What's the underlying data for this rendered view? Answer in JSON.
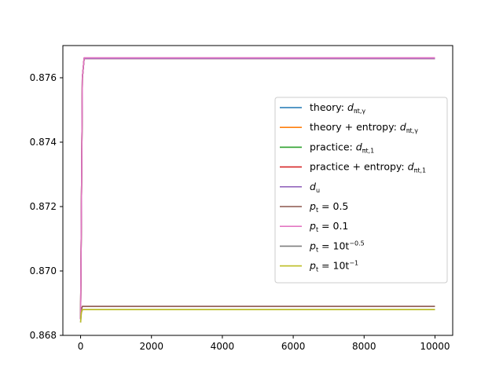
{
  "chart_data": {
    "type": "line",
    "title": "",
    "xlabel": "",
    "ylabel": "",
    "xlim": [
      -500,
      10500
    ],
    "ylim": [
      0.868,
      0.877
    ],
    "x_ticks": [
      0,
      2000,
      4000,
      6000,
      8000,
      10000
    ],
    "x_tick_labels": [
      "0",
      "2000",
      "4000",
      "6000",
      "8000",
      "10000"
    ],
    "y_ticks": [
      0.868,
      0.87,
      0.872,
      0.874,
      0.876
    ],
    "y_tick_labels": [
      "0.868",
      "0.870",
      "0.872",
      "0.874",
      "0.876"
    ],
    "grid": false,
    "legend_position": "center-right",
    "series": [
      {
        "name": "theory: d_{π_t,γ}",
        "legend": {
          "pre": "theory: ",
          "main": "d",
          "sub": "πt,γ"
        },
        "color": "#1f77b4",
        "x": [
          0,
          50,
          100,
          10000
        ],
        "y": [
          0.8685,
          0.876,
          0.87661,
          0.87661
        ]
      },
      {
        "name": "theory + entropy: d_{π_t,γ}",
        "legend": {
          "pre": "theory + entropy: ",
          "main": "d",
          "sub": "πt,γ"
        },
        "color": "#ff7f0e",
        "x": [
          0,
          50,
          100,
          10000
        ],
        "y": [
          0.8685,
          0.876,
          0.87661,
          0.87661
        ]
      },
      {
        "name": "practice: d_{π_t,1}",
        "legend": {
          "pre": "practice: ",
          "main": "d",
          "sub": "πt,1"
        },
        "color": "#2ca02c",
        "x": [
          0,
          50,
          100,
          10000
        ],
        "y": [
          0.8685,
          0.876,
          0.8766,
          0.8766
        ]
      },
      {
        "name": "practice + entropy: d_{π_t,1}",
        "legend": {
          "pre": "practice + entropy: ",
          "main": "d",
          "sub": "πt,1"
        },
        "color": "#d62728",
        "x": [
          0,
          50,
          100,
          10000
        ],
        "y": [
          0.8685,
          0.876,
          0.8766,
          0.8766
        ]
      },
      {
        "name": "d_u",
        "legend": {
          "pre": "",
          "main": "d",
          "sub": "u"
        },
        "color": "#9467bd",
        "x": [
          0,
          50,
          100,
          10000
        ],
        "y": [
          0.8685,
          0.876,
          0.8766,
          0.8766
        ]
      },
      {
        "name": "p_t = 0.5",
        "legend": {
          "pre": "",
          "main": "p",
          "sub": "t",
          "post": " = 0.5"
        },
        "color": "#8c564b",
        "x": [
          0,
          20,
          50,
          10000
        ],
        "y": [
          0.8685,
          0.8688,
          0.8689,
          0.8689
        ]
      },
      {
        "name": "p_t = 0.1",
        "legend": {
          "pre": "",
          "main": "p",
          "sub": "t",
          "post": " = 0.1"
        },
        "color": "#e377c2",
        "x": [
          0,
          50,
          100,
          10000
        ],
        "y": [
          0.8685,
          0.876,
          0.87662,
          0.87662
        ]
      },
      {
        "name": "p_t = 10t^{-0.5}",
        "legend": {
          "pre": "",
          "main": "p",
          "sub": "t",
          "post": " = 10t",
          "sup": "−0.5"
        },
        "color": "#7f7f7f",
        "x": [
          0,
          20,
          50,
          10000
        ],
        "y": [
          0.8684,
          0.8687,
          0.8688,
          0.8688
        ]
      },
      {
        "name": "p_t = 10t^{-1}",
        "legend": {
          "pre": "",
          "main": "p",
          "sub": "t",
          "post": " = 10t",
          "sup": "−1"
        },
        "color": "#bcbd22",
        "x": [
          0,
          20,
          50,
          10000
        ],
        "y": [
          0.8684,
          0.8687,
          0.8688,
          0.8688
        ]
      }
    ]
  }
}
